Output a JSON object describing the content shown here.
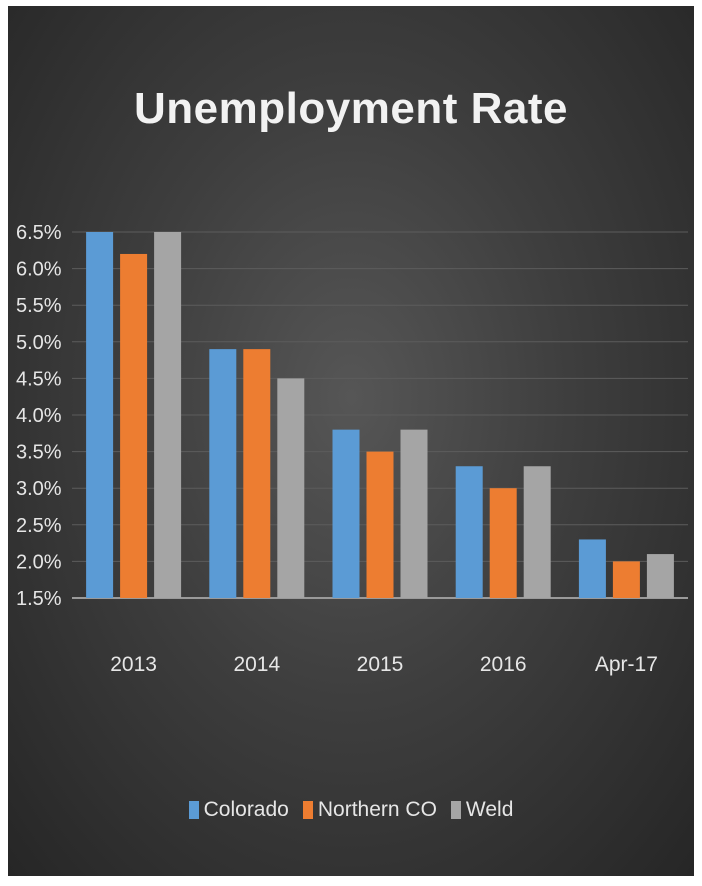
{
  "chart_data": {
    "type": "bar",
    "title": "Unemployment Rate",
    "categories": [
      "2013",
      "2014",
      "2015",
      "2016",
      "Apr-17"
    ],
    "series": [
      {
        "name": "Colorado",
        "color": "#5b9bd5",
        "values": [
          6.5,
          4.9,
          3.8,
          3.3,
          2.3
        ]
      },
      {
        "name": "Northern CO",
        "color": "#ed7d31",
        "values": [
          6.2,
          4.9,
          3.5,
          3.0,
          2.0
        ]
      },
      {
        "name": "Weld",
        "color": "#a5a5a5",
        "values": [
          6.5,
          4.5,
          3.8,
          3.3,
          2.1
        ]
      }
    ],
    "ylim": [
      1.5,
      6.5
    ],
    "yticks": [
      "1.5%",
      "2.0%",
      "2.5%",
      "3.0%",
      "3.5%",
      "4.0%",
      "4.5%",
      "5.0%",
      "5.5%",
      "6.0%",
      "6.5%"
    ],
    "grid": true,
    "legend_position": "bottom",
    "xlabel": "",
    "ylabel": ""
  }
}
